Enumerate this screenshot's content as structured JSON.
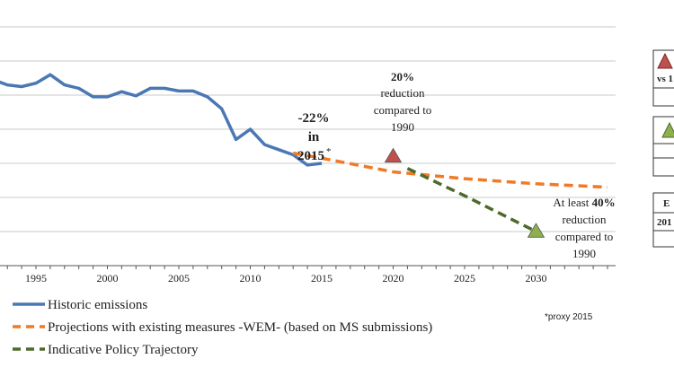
{
  "chart_data": {
    "type": "line",
    "x": [
      1990,
      1991,
      1992,
      1993,
      1994,
      1995,
      1996,
      1997,
      1998,
      1999,
      2000,
      2001,
      2002,
      2003,
      2004,
      2005,
      2006,
      2007,
      2008,
      2009,
      2010,
      2011,
      2012,
      2013,
      2014,
      2015,
      2016,
      2017,
      2018,
      2019,
      2020,
      2021,
      2022,
      2023,
      2024,
      2025,
      2026,
      2027,
      2028,
      2029,
      2030,
      2031,
      2032,
      2033,
      2034,
      2035
    ],
    "xlim": [
      1992,
      2035
    ],
    "xticks": [
      "1995",
      "2000",
      "2005",
      "2010",
      "2015",
      "2020",
      "2025",
      "2030"
    ],
    "ylim": [
      0,
      7
    ],
    "grid": true,
    "series": [
      {
        "name": "Historic emissions",
        "color": "#4a78b4",
        "style": "solid",
        "points": [
          [
            1992,
            5.45
          ],
          [
            1993,
            5.3
          ],
          [
            1994,
            5.25
          ],
          [
            1995,
            5.35
          ],
          [
            1996,
            5.6
          ],
          [
            1997,
            5.3
          ],
          [
            1998,
            5.2
          ],
          [
            1999,
            4.95
          ],
          [
            2000,
            4.95
          ],
          [
            2001,
            5.1
          ],
          [
            2002,
            4.98
          ],
          [
            2003,
            5.2
          ],
          [
            2004,
            5.2
          ],
          [
            2005,
            5.12
          ],
          [
            2006,
            5.12
          ],
          [
            2007,
            4.95
          ],
          [
            2008,
            4.6
          ],
          [
            2009,
            3.7
          ],
          [
            2010,
            4.0
          ],
          [
            2011,
            3.55
          ],
          [
            2012,
            3.4
          ],
          [
            2013,
            3.25
          ],
          [
            2014,
            2.95
          ],
          [
            2015,
            3.0
          ]
        ]
      },
      {
        "name": "Projections with existing measures -WEM- (based on MS submissions)",
        "color": "#f07a26",
        "style": "dashed",
        "points": [
          [
            2013,
            3.3
          ],
          [
            2015,
            3.15
          ],
          [
            2020,
            2.75
          ],
          [
            2025,
            2.55
          ],
          [
            2030,
            2.4
          ],
          [
            2035,
            2.3
          ]
        ]
      },
      {
        "name": "Indicative Policy Trajectory",
        "color": "#4d6a2c",
        "style": "dashed",
        "points": [
          [
            2021,
            2.85
          ],
          [
            2025,
            2.05
          ],
          [
            2030,
            1.0
          ]
        ]
      }
    ],
    "markers": [
      {
        "name": "2020 target",
        "x": 2020,
        "y": 3.2,
        "color": "#c0504d"
      },
      {
        "name": "2030 target",
        "x": 2030,
        "y": 1.0,
        "color": "#8db04d"
      }
    ],
    "annotations": {
      "a2015": {
        "line1": "-22%",
        "line2": "in",
        "line3": "2015",
        "star": "*",
        "color": "#4a78b4"
      },
      "a2020": {
        "bold": "20%",
        "line2": "reduction",
        "line3": "compared to",
        "line4": "1990"
      },
      "a2030": {
        "prefix": "At least ",
        "bold": "40%",
        "line2": "reduction",
        "line3": "compared to",
        "line4": "1990"
      },
      "proxy": "*proxy 2015"
    },
    "side_panel": {
      "box1_text": "vs 1",
      "box3_text1": "E",
      "box3_text2": "201"
    }
  }
}
